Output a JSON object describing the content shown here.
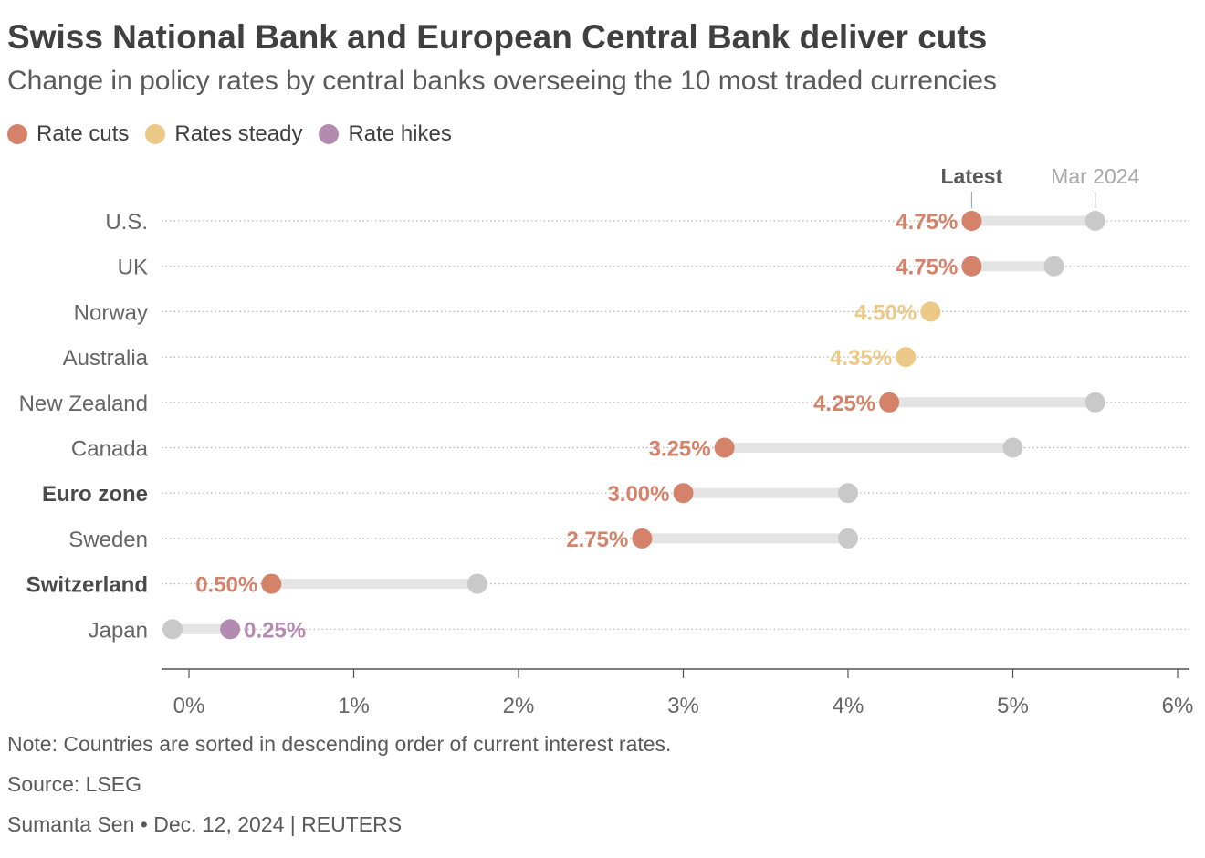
{
  "header": {
    "title": "Swiss National Bank and European Central Bank deliver cuts",
    "subtitle": "Change in policy rates by central banks overseeing the 10 most traded currencies"
  },
  "legend": [
    {
      "label": "Rate cuts",
      "color": "#d4826a"
    },
    {
      "label": "Rates steady",
      "color": "#ecc987"
    },
    {
      "label": "Rate hikes",
      "color": "#b48bb0"
    }
  ],
  "chart_data": {
    "type": "dumbbell",
    "xlim": [
      -0.17,
      6.05
    ],
    "x_ticks": [
      {
        "value": 0,
        "label": "0%"
      },
      {
        "value": 1,
        "label": "1%"
      },
      {
        "value": 2,
        "label": "2%"
      },
      {
        "value": 3,
        "label": "3%"
      },
      {
        "value": 4,
        "label": "4%"
      },
      {
        "value": 5,
        "label": "5%"
      },
      {
        "value": 6,
        "label": "6%"
      }
    ],
    "series_labels": {
      "latest": "Latest",
      "previous": "Mar 2024"
    },
    "colors": {
      "cut": "#d4826a",
      "steady": "#ecc987",
      "hike": "#b48bb0",
      "previous": "#c9c9c9"
    },
    "rows": [
      {
        "country": "U.S.",
        "latest": 4.75,
        "latest_label": "4.75%",
        "previous": 5.5,
        "status": "cut",
        "bold": false
      },
      {
        "country": "UK",
        "latest": 4.75,
        "latest_label": "4.75%",
        "previous": 5.25,
        "status": "cut",
        "bold": false
      },
      {
        "country": "Norway",
        "latest": 4.5,
        "latest_label": "4.50%",
        "previous": 4.5,
        "status": "steady",
        "bold": false
      },
      {
        "country": "Australia",
        "latest": 4.35,
        "latest_label": "4.35%",
        "previous": 4.35,
        "status": "steady",
        "bold": false
      },
      {
        "country": "New Zealand",
        "latest": 4.25,
        "latest_label": "4.25%",
        "previous": 5.5,
        "status": "cut",
        "bold": false
      },
      {
        "country": "Canada",
        "latest": 3.25,
        "latest_label": "3.25%",
        "previous": 5.0,
        "status": "cut",
        "bold": false
      },
      {
        "country": "Euro zone",
        "latest": 3.0,
        "latest_label": "3.00%",
        "previous": 4.0,
        "status": "cut",
        "bold": true
      },
      {
        "country": "Sweden",
        "latest": 2.75,
        "latest_label": "2.75%",
        "previous": 4.0,
        "status": "cut",
        "bold": false
      },
      {
        "country": "Switzerland",
        "latest": 0.5,
        "latest_label": "0.50%",
        "previous": 1.75,
        "status": "cut",
        "bold": true
      },
      {
        "country": "Japan",
        "latest": 0.25,
        "latest_label": "0.25%",
        "previous": -0.1,
        "status": "hike",
        "bold": false
      }
    ]
  },
  "footer": {
    "note": "Note: Countries are sorted in descending order of current interest rates.",
    "source": "Source: LSEG",
    "byline": "Sumanta Sen • Dec. 12, 2024 | REUTERS"
  }
}
